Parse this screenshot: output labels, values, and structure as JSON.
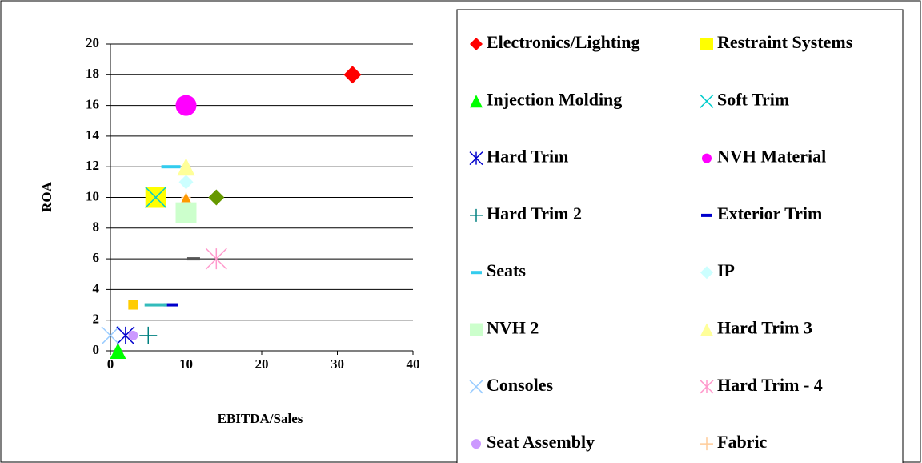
{
  "chart_data": {
    "type": "scatter",
    "x_label": "EBITDA/Sales",
    "y_label": "ROA",
    "xlim": [
      0,
      40
    ],
    "xticks": [
      0,
      10,
      20,
      30,
      40
    ],
    "ylim": [
      0,
      20
    ],
    "yticks": [
      0,
      2,
      4,
      6,
      8,
      10,
      12,
      14,
      16,
      18,
      20
    ],
    "grid": true,
    "series": [
      {
        "name": "Electronics/Lighting",
        "color": "#ff0000",
        "marker": "diamond",
        "x": [
          32
        ],
        "values": [
          18
        ]
      },
      {
        "name": "Restraint Systems",
        "color": "#ffff00",
        "marker": "square",
        "x": [
          6
        ],
        "values": [
          10
        ]
      },
      {
        "name": "Injection Molding",
        "color": "#00ff00",
        "marker": "triangle",
        "x": [
          1
        ],
        "values": [
          0
        ]
      },
      {
        "name": "Soft Trim",
        "color": "#00cccc",
        "marker": "x",
        "x": [
          6
        ],
        "values": [
          10
        ]
      },
      {
        "name": "Hard Trim",
        "color": "#0000cc",
        "marker": "asterisk",
        "x": [
          2
        ],
        "values": [
          1
        ]
      },
      {
        "name": "NVH Material",
        "color": "#ff00ff",
        "marker": "circle",
        "x": [
          10
        ],
        "values": [
          16
        ]
      },
      {
        "name": "Hard Trim 2",
        "color": "#008080",
        "marker": "plus",
        "x": [
          5
        ],
        "values": [
          1
        ]
      },
      {
        "name": "Exterior Trim",
        "color": "#0000cc",
        "marker": "dash",
        "x": [
          8
        ],
        "values": [
          3
        ]
      },
      {
        "name": "Seats",
        "color": "#33ccee",
        "marker": "dash",
        "x": [
          8
        ],
        "values": [
          12
        ]
      },
      {
        "name": "IP",
        "color": "#ccffff",
        "marker": "diamond",
        "x": [
          10
        ],
        "values": [
          11
        ]
      },
      {
        "name": "NVH 2",
        "color": "#ccffcc",
        "marker": "square",
        "x": [
          10
        ],
        "values": [
          9
        ]
      },
      {
        "name": "Hard Trim 3",
        "color": "#ffff99",
        "marker": "triangle",
        "x": [
          10
        ],
        "values": [
          12
        ]
      },
      {
        "name": "Consoles",
        "color": "#99ccff",
        "marker": "x",
        "x": [
          0
        ],
        "values": [
          1
        ]
      },
      {
        "name": "Hard Trim - 4",
        "color": "#ff99cc",
        "marker": "asterisk",
        "x": [
          14
        ],
        "values": [
          6
        ]
      },
      {
        "name": "Seat Assembly",
        "color": "#cc99ff",
        "marker": "circle",
        "x": [
          3
        ],
        "values": [
          1
        ]
      },
      {
        "name": "Fabric",
        "color": "#ffcc99",
        "marker": "plus",
        "x": [
          10
        ],
        "values": [
          10
        ]
      },
      {
        "color": "#ffcc00",
        "marker": "square",
        "x": [
          3
        ],
        "values": [
          3
        ]
      },
      {
        "color": "#ff9900",
        "marker": "triangle",
        "x": [
          10
        ],
        "values": [
          10
        ]
      },
      {
        "color": "#669900",
        "marker": "diamond",
        "x": [
          14
        ],
        "values": [
          10
        ]
      },
      {
        "color": "#555555",
        "marker": "dash",
        "x": [
          11
        ],
        "values": [
          6
        ]
      },
      {
        "color": "#33bbbb",
        "marker": "dash",
        "x": [
          6
        ],
        "values": [
          3
        ]
      }
    ]
  }
}
